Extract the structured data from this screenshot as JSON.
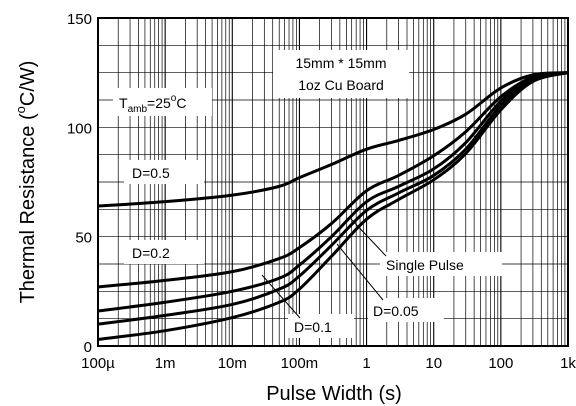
{
  "chart_data": {
    "type": "line",
    "xscale": "log",
    "xlim": [
      0.0001,
      1000
    ],
    "ylim": [
      0,
      150
    ],
    "grid": true,
    "xlabel": "Pulse Width (s)",
    "ylabel_main": "Thermal Resistance (",
    "ylabel_sup": "o",
    "ylabel_end": "C/W)",
    "xticks": [
      {
        "value": 0.0001,
        "label": "100µ"
      },
      {
        "value": 0.001,
        "label": "1m"
      },
      {
        "value": 0.01,
        "label": "10m"
      },
      {
        "value": 0.1,
        "label": "100m"
      },
      {
        "value": 1,
        "label": "1"
      },
      {
        "value": 10,
        "label": "10"
      },
      {
        "value": 100,
        "label": "100"
      },
      {
        "value": 1000,
        "label": "1k"
      }
    ],
    "yticks": [
      {
        "value": 0,
        "label": "0"
      },
      {
        "value": 50,
        "label": "50"
      },
      {
        "value": 100,
        "label": "100"
      },
      {
        "value": 150,
        "label": "150"
      }
    ],
    "annotations": {
      "board_line1": "15mm * 15mm",
      "board_line2": "1oz Cu Board",
      "tamb_T": "T",
      "tamb_sub": "amb",
      "tamb_eq": "=25",
      "tamb_deg": "o",
      "tamb_C": "C"
    },
    "series": [
      {
        "name": "D=0.5",
        "x": [
          0.0001,
          0.001,
          0.01,
          0.05,
          0.1,
          0.3,
          1,
          3,
          10,
          30,
          100,
          300,
          1000
        ],
        "y": [
          64,
          66,
          69,
          73,
          77,
          83,
          90,
          94,
          99,
          106,
          118,
          124,
          125
        ]
      },
      {
        "name": "D=0.2",
        "x": [
          0.0001,
          0.001,
          0.01,
          0.05,
          0.1,
          0.3,
          1,
          3,
          10,
          30,
          100,
          300,
          1000
        ],
        "y": [
          27,
          30,
          34,
          40,
          45,
          56,
          71,
          78,
          87,
          98,
          114,
          123,
          125
        ]
      },
      {
        "name": "D=0.1",
        "x": [
          0.0001,
          0.001,
          0.01,
          0.05,
          0.1,
          0.3,
          1,
          3,
          10,
          30,
          100,
          300,
          1000
        ],
        "y": [
          16,
          20,
          25,
          31,
          37,
          50,
          66,
          73,
          81,
          93,
          112,
          123,
          125
        ]
      },
      {
        "name": "D=0.05",
        "x": [
          0.0001,
          0.001,
          0.01,
          0.05,
          0.1,
          0.3,
          1,
          3,
          10,
          30,
          100,
          300,
          1000
        ],
        "y": [
          10,
          14,
          19,
          26,
          32,
          46,
          62,
          70,
          78,
          90,
          110,
          122,
          125
        ]
      },
      {
        "name": "Single Pulse",
        "x": [
          0.0001,
          0.001,
          0.01,
          0.05,
          0.1,
          0.3,
          1,
          3,
          10,
          30,
          100,
          300,
          1000
        ],
        "y": [
          3,
          7,
          13,
          20,
          26,
          41,
          58,
          67,
          76,
          88,
          108,
          121,
          125
        ]
      }
    ]
  }
}
